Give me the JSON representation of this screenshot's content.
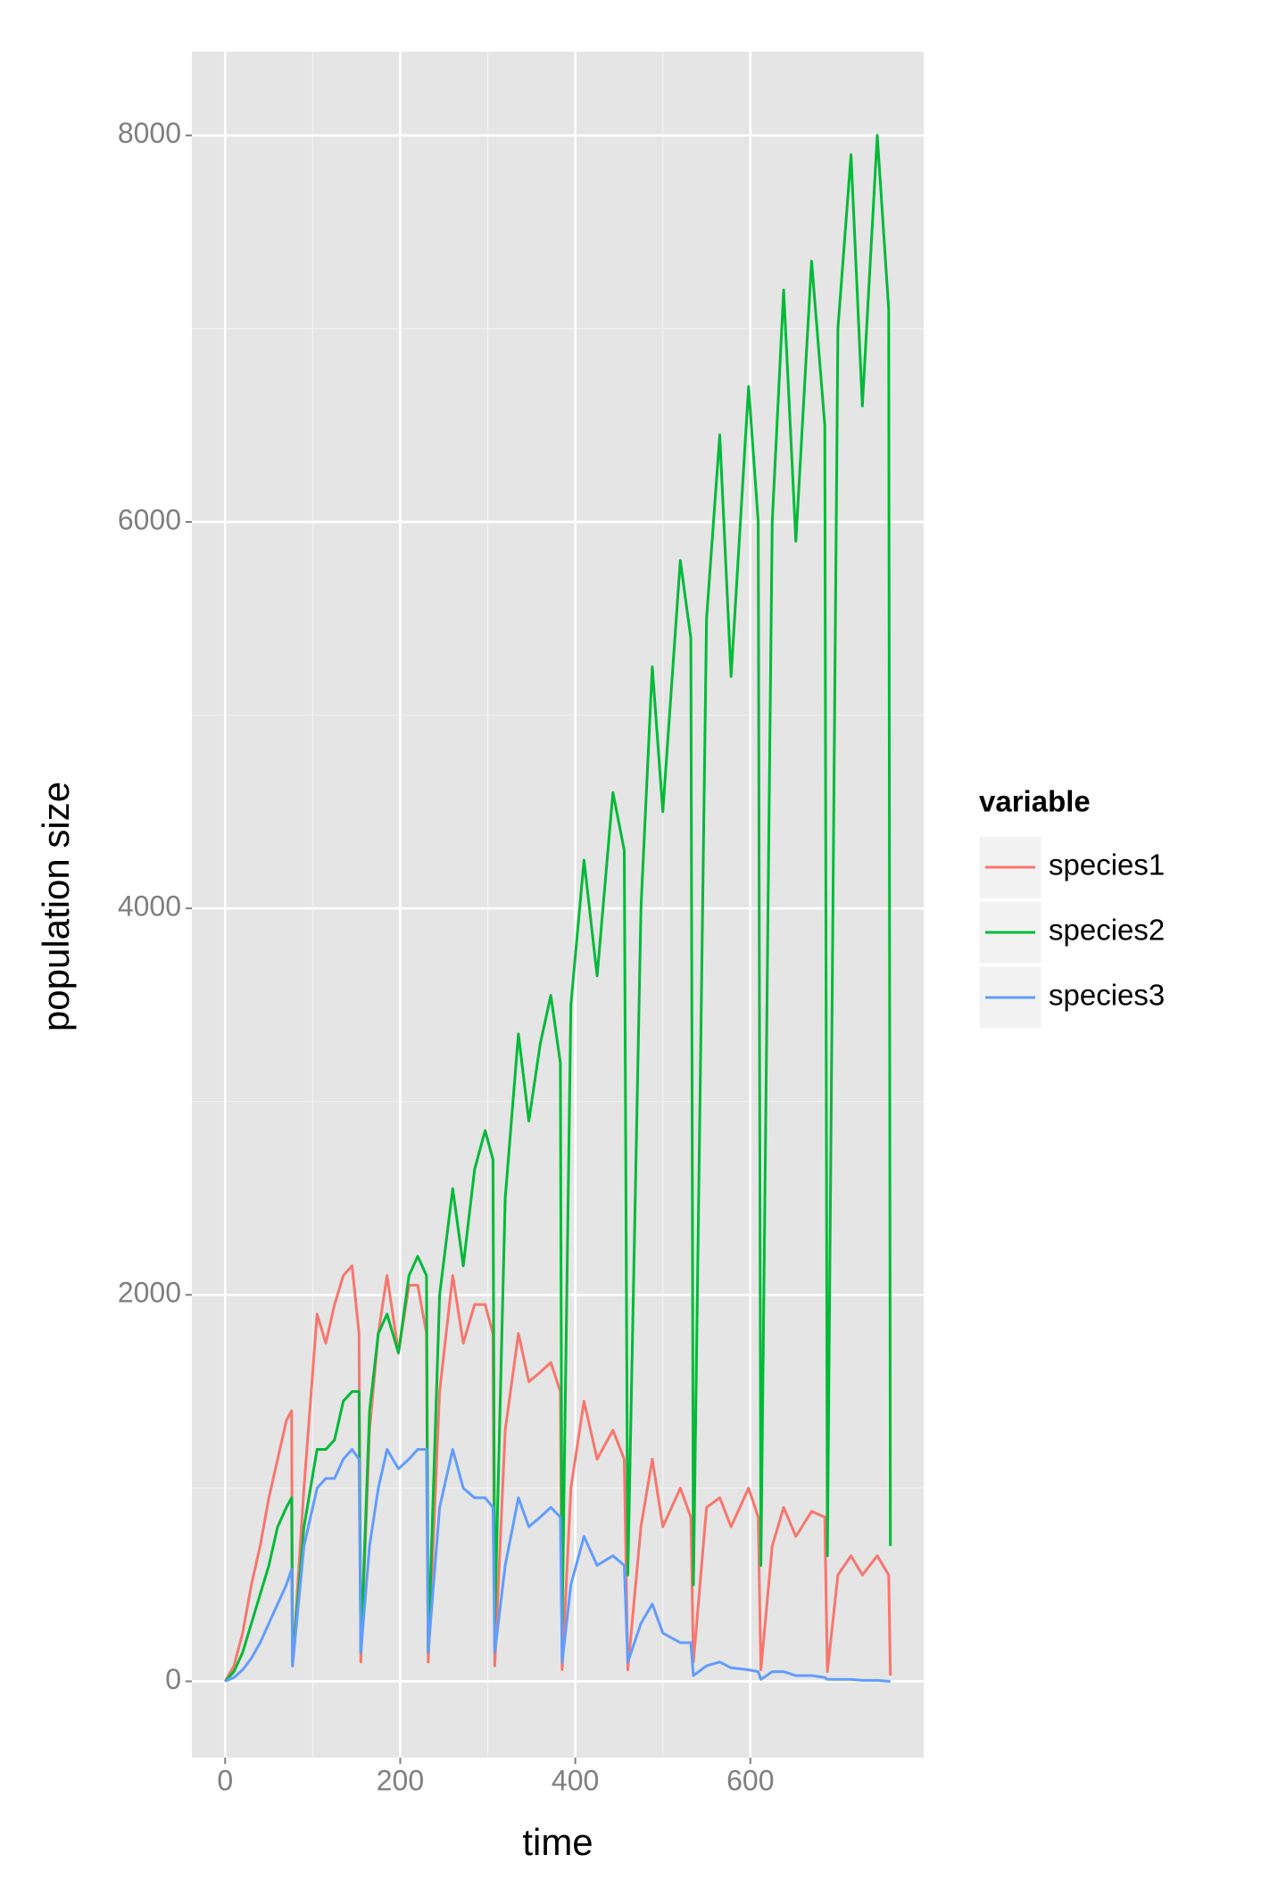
{
  "chart_data": {
    "type": "line",
    "x_label": "time",
    "y_label": "population size",
    "legend_title": "variable",
    "legend_position": "right",
    "grid": true,
    "xlim": [
      -38,
      798
    ],
    "ylim": [
      -395,
      8433
    ],
    "xticks": [
      0,
      200,
      400,
      600
    ],
    "yticks": [
      0,
      2000,
      4000,
      6000,
      8000
    ],
    "x": [
      0,
      10,
      20,
      30,
      40,
      50,
      60,
      70,
      76,
      77,
      90,
      105,
      115,
      125,
      135,
      145,
      153,
      155,
      165,
      175,
      185,
      198,
      210,
      220,
      230,
      232,
      245,
      260,
      272,
      285,
      297,
      306,
      308,
      320,
      335,
      347,
      360,
      372,
      383,
      385,
      395,
      410,
      425,
      443,
      456,
      460,
      475,
      488,
      500,
      520,
      532,
      535,
      550,
      565,
      578,
      598,
      609,
      612,
      625,
      638,
      652,
      670,
      685,
      688,
      700,
      715,
      728,
      745,
      758,
      760
    ],
    "series": [
      {
        "name": "species1",
        "color": "#F8766D",
        "values": [
          0,
          80,
          250,
          500,
          700,
          950,
          1150,
          1350,
          1400,
          80,
          1000,
          1900,
          1750,
          1950,
          2100,
          2150,
          1800,
          100,
          1300,
          1800,
          2100,
          1700,
          2050,
          2050,
          1800,
          100,
          1500,
          2100,
          1750,
          1950,
          1950,
          1800,
          80,
          1300,
          1800,
          1550,
          1600,
          1650,
          1500,
          60,
          1000,
          1450,
          1150,
          1300,
          1150,
          60,
          800,
          1150,
          800,
          1000,
          850,
          100,
          900,
          950,
          800,
          1000,
          850,
          60,
          700,
          900,
          750,
          880,
          850,
          50,
          550,
          650,
          550,
          650,
          550,
          30
        ]
      },
      {
        "name": "species2",
        "color": "#00BA38",
        "values": [
          0,
          50,
          150,
          300,
          450,
          600,
          800,
          900,
          950,
          100,
          800,
          1200,
          1200,
          1250,
          1450,
          1500,
          1500,
          150,
          1400,
          1800,
          1900,
          1700,
          2100,
          2200,
          2100,
          150,
          2000,
          2550,
          2150,
          2650,
          2850,
          2700,
          300,
          2500,
          3350,
          2900,
          3300,
          3550,
          3200,
          300,
          3500,
          4250,
          3650,
          4600,
          4300,
          550,
          4000,
          5250,
          4500,
          5800,
          5400,
          500,
          5500,
          6450,
          5200,
          6700,
          6000,
          600,
          6000,
          7200,
          5900,
          7350,
          6500,
          650,
          7000,
          7900,
          6600,
          8000,
          7100,
          700
        ]
      },
      {
        "name": "species3",
        "color": "#619CFF",
        "values": [
          0,
          20,
          60,
          120,
          200,
          300,
          400,
          500,
          580,
          80,
          700,
          1000,
          1050,
          1050,
          1150,
          1200,
          1150,
          150,
          700,
          1000,
          1200,
          1100,
          1150,
          1200,
          1200,
          150,
          900,
          1200,
          1000,
          950,
          950,
          900,
          150,
          600,
          950,
          800,
          850,
          900,
          850,
          100,
          500,
          750,
          600,
          650,
          600,
          100,
          300,
          400,
          250,
          200,
          200,
          30,
          80,
          100,
          70,
          60,
          50,
          10,
          50,
          50,
          30,
          30,
          20,
          10,
          10,
          10,
          5,
          5,
          0,
          0
        ]
      }
    ]
  }
}
